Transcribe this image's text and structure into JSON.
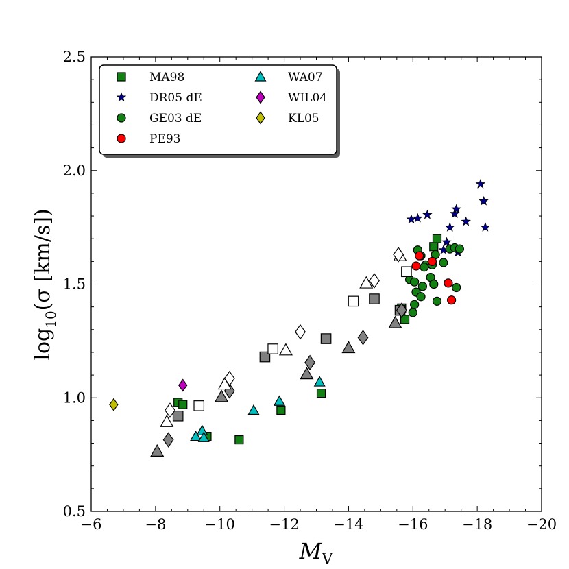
{
  "chart_data": {
    "type": "scatter",
    "title": "",
    "xlabel": "M_V",
    "xlabel_main": "M",
    "xlabel_sub": "V",
    "ylabel": "log10(σ [km/s])",
    "ylabel_pre": "log",
    "ylabel_sub": "10",
    "ylabel_post": "(σ [km/s])",
    "xlim": [
      -6,
      -20
    ],
    "ylim": [
      0.5,
      2.5
    ],
    "xticks": [
      -6,
      -8,
      -10,
      -12,
      -14,
      -16,
      -18,
      -20
    ],
    "xtick_labels": [
      "−6",
      "−8",
      "−10",
      "−12",
      "−14",
      "−16",
      "−18",
      "−20"
    ],
    "yticks": [
      0.5,
      1.0,
      1.5,
      2.0,
      2.5
    ],
    "ytick_labels": [
      "0.5",
      "1.0",
      "1.5",
      "2.0",
      "2.5"
    ],
    "legend_position": "top-left",
    "series": [
      {
        "name": "MA98",
        "marker": "square",
        "color": "#138013",
        "in_legend": true,
        "points": [
          [
            -8.7,
            0.98
          ],
          [
            -8.85,
            0.97
          ],
          [
            -9.6,
            0.83
          ],
          [
            -10.6,
            0.815
          ],
          [
            -11.9,
            0.945
          ],
          [
            -13.15,
            1.02
          ],
          [
            -15.75,
            1.345
          ],
          [
            -15.65,
            1.395
          ],
          [
            -16.65,
            1.665
          ],
          [
            -16.75,
            1.7
          ]
        ]
      },
      {
        "name": "DR05 dE",
        "marker": "star",
        "color": "#00008b",
        "in_legend": true,
        "points": [
          [
            -15.95,
            1.785
          ],
          [
            -16.15,
            1.79
          ],
          [
            -16.45,
            1.805
          ],
          [
            -16.95,
            1.65
          ],
          [
            -17.05,
            1.685
          ],
          [
            -17.15,
            1.75
          ],
          [
            -17.3,
            1.81
          ],
          [
            -17.35,
            1.83
          ],
          [
            -17.4,
            1.64
          ],
          [
            -17.65,
            1.775
          ],
          [
            -18.1,
            1.94
          ],
          [
            -18.2,
            1.865
          ],
          [
            -18.25,
            1.75
          ]
        ]
      },
      {
        "name": "GE03 dE",
        "marker": "circle",
        "color": "#138013",
        "in_legend": true,
        "points": [
          [
            -15.9,
            1.52
          ],
          [
            -16.0,
            1.375
          ],
          [
            -16.05,
            1.41
          ],
          [
            -16.05,
            1.51
          ],
          [
            -16.1,
            1.465
          ],
          [
            -16.15,
            1.65
          ],
          [
            -16.25,
            1.625
          ],
          [
            -16.25,
            1.445
          ],
          [
            -16.3,
            1.49
          ],
          [
            -16.4,
            1.585
          ],
          [
            -16.55,
            1.53
          ],
          [
            -16.65,
            1.5
          ],
          [
            -16.7,
            1.63
          ],
          [
            -16.75,
            1.425
          ],
          [
            -16.95,
            1.595
          ],
          [
            -17.15,
            1.655
          ],
          [
            -17.3,
            1.66
          ],
          [
            -17.35,
            1.485
          ],
          [
            -17.45,
            1.655
          ],
          [
            -16.6,
            1.585
          ],
          [
            -16.35,
            1.575
          ]
        ]
      },
      {
        "name": "PE93",
        "marker": "circle",
        "color": "#ff0000",
        "in_legend": true,
        "points": [
          [
            -16.1,
            1.58
          ],
          [
            -16.2,
            1.625
          ],
          [
            -16.6,
            1.6
          ],
          [
            -17.1,
            1.505
          ],
          [
            -17.2,
            1.43
          ]
        ]
      },
      {
        "name": "WA07",
        "marker": "triangle",
        "color": "#00bfbf",
        "in_legend": true,
        "points": [
          [
            -9.25,
            0.83
          ],
          [
            -9.45,
            0.855
          ],
          [
            -9.5,
            0.825
          ],
          [
            -11.05,
            0.945
          ],
          [
            -11.85,
            0.985
          ],
          [
            -13.1,
            1.07
          ]
        ]
      },
      {
        "name": "WIL04",
        "marker": "diamond",
        "color": "#bf00bf",
        "in_legend": true,
        "points": [
          [
            -8.85,
            1.055
          ]
        ]
      },
      {
        "name": "KL05",
        "marker": "diamond",
        "color": "#bfbf00",
        "in_legend": true,
        "points": [
          [
            -6.7,
            0.97
          ]
        ]
      },
      {
        "name": "grey triangles",
        "marker": "triangle",
        "color": "#808080",
        "in_legend": false,
        "points": [
          [
            -8.05,
            0.765
          ],
          [
            -10.05,
            1.005
          ],
          [
            -12.7,
            1.105
          ],
          [
            -14.0,
            1.22
          ],
          [
            -15.45,
            1.33
          ]
        ]
      },
      {
        "name": "grey squares",
        "marker": "square",
        "color": "#808080",
        "in_legend": false,
        "points": [
          [
            -8.7,
            0.92
          ],
          [
            -11.4,
            1.18
          ],
          [
            -13.3,
            1.26
          ],
          [
            -14.8,
            1.435
          ],
          [
            -15.6,
            1.385
          ]
        ]
      },
      {
        "name": "grey diamonds",
        "marker": "diamond",
        "color": "#808080",
        "in_legend": false,
        "points": [
          [
            -8.4,
            0.815
          ],
          [
            -10.3,
            1.03
          ],
          [
            -12.8,
            1.155
          ],
          [
            -14.45,
            1.265
          ],
          [
            -15.65,
            1.385
          ]
        ]
      },
      {
        "name": "open triangles",
        "marker": "triangle",
        "color": "#ffffff",
        "in_legend": false,
        "points": [
          [
            -8.35,
            0.895
          ],
          [
            -10.15,
            1.06
          ],
          [
            -12.05,
            1.21
          ],
          [
            -14.55,
            1.505
          ],
          [
            -15.6,
            1.625
          ]
        ]
      },
      {
        "name": "open squares",
        "marker": "square",
        "color": "#ffffff",
        "in_legend": false,
        "points": [
          [
            -9.35,
            0.965
          ],
          [
            -11.65,
            1.215
          ],
          [
            -14.15,
            1.425
          ],
          [
            -15.8,
            1.555
          ]
        ]
      },
      {
        "name": "open diamonds",
        "marker": "diamond",
        "color": "#ffffff",
        "in_legend": false,
        "points": [
          [
            -8.45,
            0.945
          ],
          [
            -10.3,
            1.085
          ],
          [
            -12.5,
            1.29
          ],
          [
            -14.8,
            1.515
          ],
          [
            -15.55,
            1.63
          ]
        ]
      }
    ]
  }
}
